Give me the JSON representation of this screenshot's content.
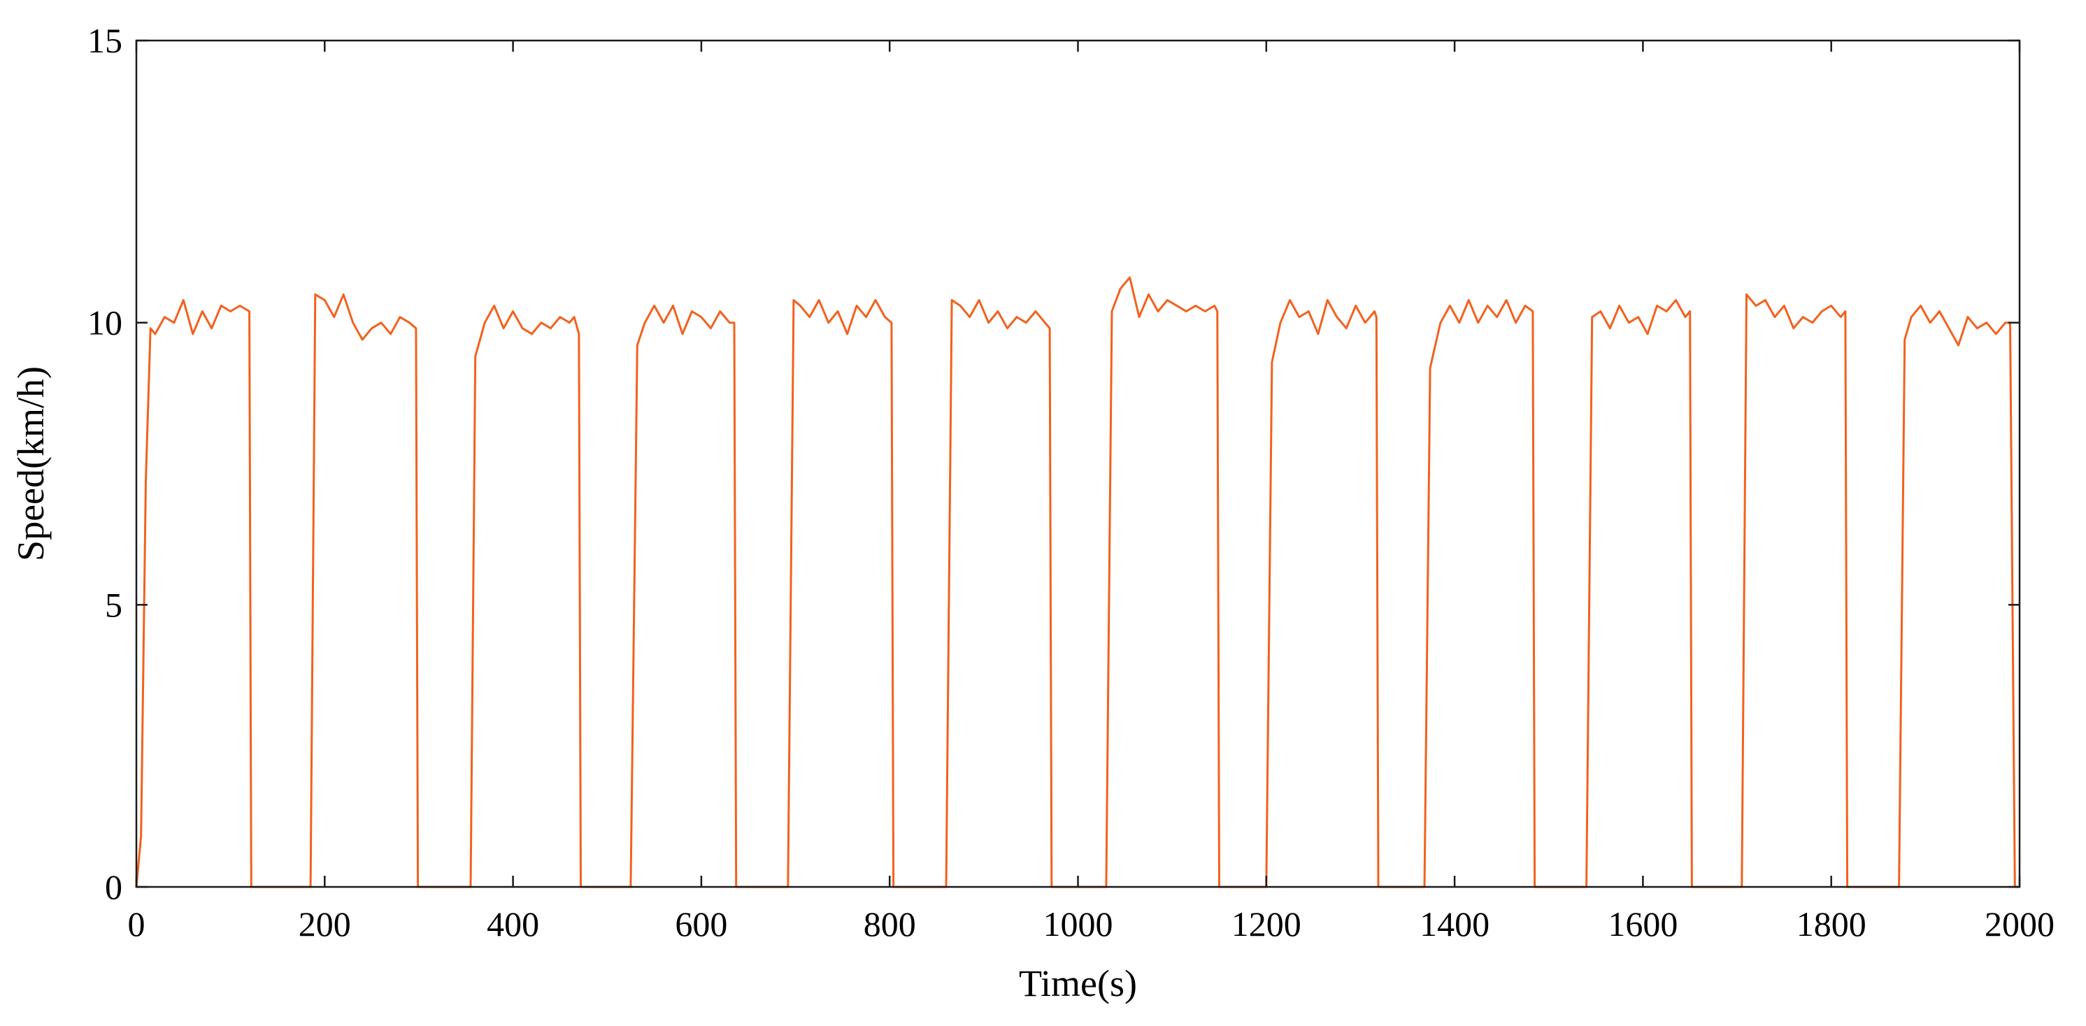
{
  "chart_data": {
    "type": "line",
    "title": "",
    "xlabel": "Time(s)",
    "ylabel": "Speed(km/h)",
    "xlim": [
      0,
      2000
    ],
    "ylim": [
      0,
      15
    ],
    "xticks": [
      0,
      200,
      400,
      600,
      800,
      1000,
      1200,
      1400,
      1600,
      1800,
      2000
    ],
    "yticks": [
      0,
      5,
      10,
      15
    ],
    "grid": false,
    "legend": "none",
    "series": [
      {
        "color": "#F2611E",
        "description": "Repeating drive cycles: speed ramps from 0 to about 10 km/h, holds near 10 km/h with small fluctuations, then drops to 0 and idles before the next cycle.",
        "x": [
          0,
          5,
          10,
          15,
          20,
          30,
          40,
          50,
          60,
          70,
          80,
          90,
          100,
          110,
          120,
          122,
          123,
          185,
          190,
          200,
          210,
          220,
          230,
          240,
          250,
          260,
          270,
          280,
          290,
          297,
          299,
          300,
          355,
          360,
          370,
          380,
          390,
          400,
          410,
          420,
          430,
          440,
          450,
          460,
          465,
          470,
          472,
          525,
          532,
          540,
          550,
          560,
          570,
          580,
          590,
          600,
          610,
          620,
          630,
          635,
          637,
          692,
          698,
          705,
          715,
          725,
          735,
          745,
          755,
          765,
          775,
          785,
          795,
          802,
          804,
          860,
          866,
          875,
          885,
          895,
          905,
          915,
          925,
          935,
          945,
          955,
          965,
          970,
          972,
          1030,
          1036,
          1045,
          1055,
          1065,
          1075,
          1085,
          1095,
          1105,
          1115,
          1125,
          1135,
          1145,
          1148,
          1150,
          1200,
          1206,
          1215,
          1225,
          1235,
          1245,
          1255,
          1265,
          1275,
          1285,
          1295,
          1305,
          1315,
          1317,
          1319,
          1368,
          1374,
          1385,
          1395,
          1405,
          1415,
          1425,
          1435,
          1445,
          1455,
          1465,
          1475,
          1483,
          1485,
          1540,
          1546,
          1555,
          1565,
          1575,
          1585,
          1595,
          1605,
          1615,
          1625,
          1635,
          1645,
          1650,
          1652,
          1705,
          1710,
          1720,
          1730,
          1740,
          1750,
          1760,
          1770,
          1780,
          1790,
          1800,
          1810,
          1815,
          1817,
          1872,
          1878,
          1885,
          1895,
          1905,
          1915,
          1925,
          1935,
          1945,
          1955,
          1965,
          1975,
          1985,
          1990,
          1995,
          2000
        ],
        "y": [
          0,
          0.9,
          7.2,
          9.9,
          9.8,
          10.1,
          10.0,
          10.4,
          9.8,
          10.2,
          9.9,
          10.3,
          10.2,
          10.3,
          10.2,
          0,
          0,
          0,
          10.5,
          10.4,
          10.1,
          10.5,
          10.0,
          9.7,
          9.9,
          10.0,
          9.8,
          10.1,
          10.0,
          9.9,
          0,
          0,
          0,
          9.4,
          10.0,
          10.3,
          9.9,
          10.2,
          9.9,
          9.8,
          10.0,
          9.9,
          10.1,
          10.0,
          10.1,
          9.8,
          0,
          0,
          9.6,
          10.0,
          10.3,
          10.0,
          10.3,
          9.8,
          10.2,
          10.1,
          9.9,
          10.2,
          10.0,
          10.0,
          0,
          0,
          10.4,
          10.3,
          10.1,
          10.4,
          10.0,
          10.2,
          9.8,
          10.3,
          10.1,
          10.4,
          10.1,
          10.0,
          0,
          0,
          10.4,
          10.3,
          10.1,
          10.4,
          10.0,
          10.2,
          9.9,
          10.1,
          10.0,
          10.2,
          10.0,
          9.9,
          0,
          0,
          10.2,
          10.6,
          10.8,
          10.1,
          10.5,
          10.2,
          10.4,
          10.3,
          10.2,
          10.3,
          10.2,
          10.3,
          10.2,
          0,
          0,
          9.3,
          10.0,
          10.4,
          10.1,
          10.2,
          9.8,
          10.4,
          10.1,
          9.9,
          10.3,
          10.0,
          10.2,
          10.1,
          0,
          0,
          9.2,
          10.0,
          10.3,
          10.0,
          10.4,
          10.0,
          10.3,
          10.1,
          10.4,
          10.0,
          10.3,
          10.2,
          0,
          0,
          10.1,
          10.2,
          9.9,
          10.3,
          10.0,
          10.1,
          9.8,
          10.3,
          10.2,
          10.4,
          10.1,
          10.2,
          0,
          0,
          10.5,
          10.3,
          10.4,
          10.1,
          10.3,
          9.9,
          10.1,
          10.0,
          10.2,
          10.3,
          10.1,
          10.2,
          0,
          0,
          9.7,
          10.1,
          10.3,
          10.0,
          10.2,
          9.9,
          9.6,
          10.1,
          9.9,
          10.0,
          9.8,
          10.0,
          10.0,
          0,
          0
        ]
      }
    ]
  }
}
